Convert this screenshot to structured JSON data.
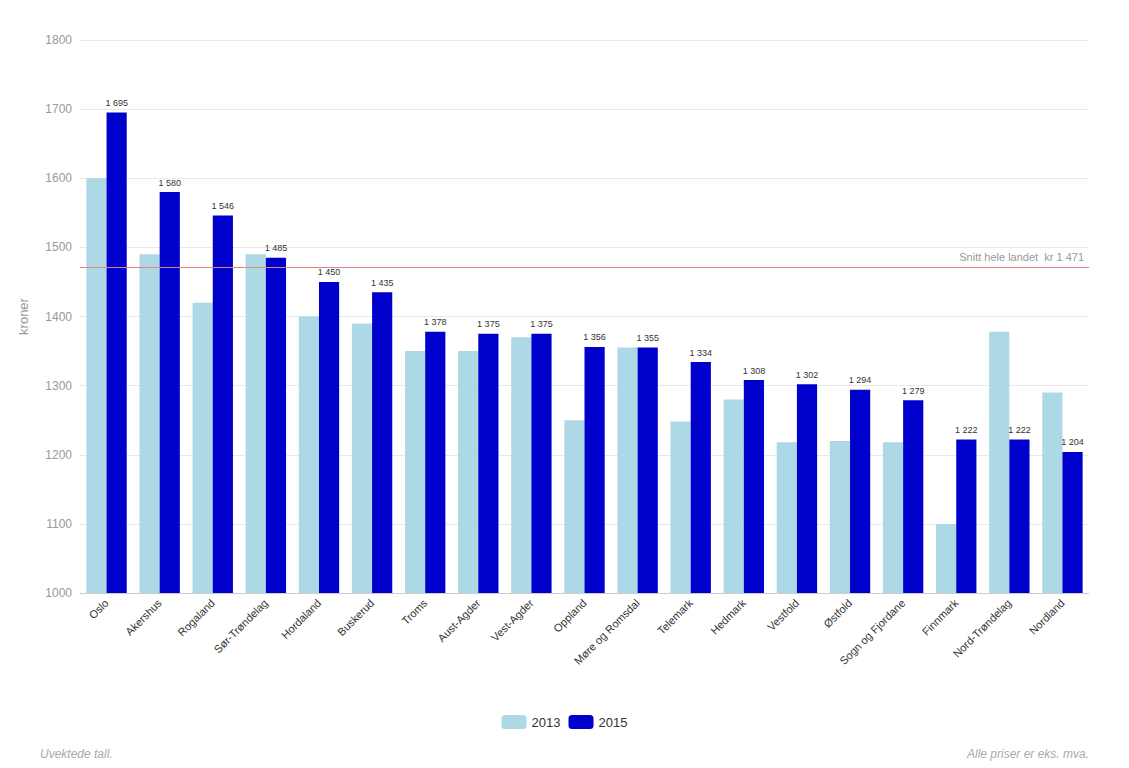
{
  "chart_data": {
    "type": "bar",
    "categories": [
      "Oslo",
      "Akershus",
      "Rogaland",
      "Sør-Trøndelag",
      "Hordaland",
      "Buskerud",
      "Troms",
      "Aust-Agder",
      "Vest-Agder",
      "Oppland",
      "Møre og Romsdal",
      "Telemark",
      "Hedmark",
      "Vestfold",
      "Østfold",
      "Sogn og Fjordane",
      "Finnmark",
      "Nord-Trøndelag",
      "Nordland"
    ],
    "series": [
      {
        "name": "2013",
        "color": "#add8e6",
        "values": [
          1600,
          1490,
          1420,
          1490,
          1400,
          1390,
          1350,
          1350,
          1370,
          1250,
          1355,
          1248,
          1280,
          1218,
          1220,
          1218,
          1100,
          1378,
          1290
        ]
      },
      {
        "name": "2015",
        "color": "#0000cd",
        "values": [
          1695,
          1580,
          1546,
          1485,
          1450,
          1435,
          1378,
          1375,
          1375,
          1356,
          1355,
          1334,
          1308,
          1302,
          1294,
          1279,
          1222,
          1222,
          1204
        ],
        "data_labels": true,
        "value_labels": [
          "1 695",
          "1 580",
          "1 546",
          "1 485",
          "1 450",
          "1 435",
          "1 378",
          "1 375",
          "1 375",
          "1 356",
          "1 355",
          "1 334",
          "1 308",
          "1 302",
          "1 294",
          "1 279",
          "1 222",
          "1 222",
          "1 204"
        ]
      }
    ],
    "reference_line": {
      "value": 1471,
      "label": "Snitt hele landet  kr 1 471",
      "color": "#e88080"
    },
    "ylabel": "kroner",
    "ylim": [
      1000,
      1800
    ],
    "yticks": [
      1000,
      1100,
      1200,
      1300,
      1400,
      1500,
      1600,
      1700,
      1800
    ],
    "grid": true,
    "legend": "bottom",
    "annotations": [
      "Uvektede tall.",
      "Alle priser er eks. mva."
    ]
  }
}
